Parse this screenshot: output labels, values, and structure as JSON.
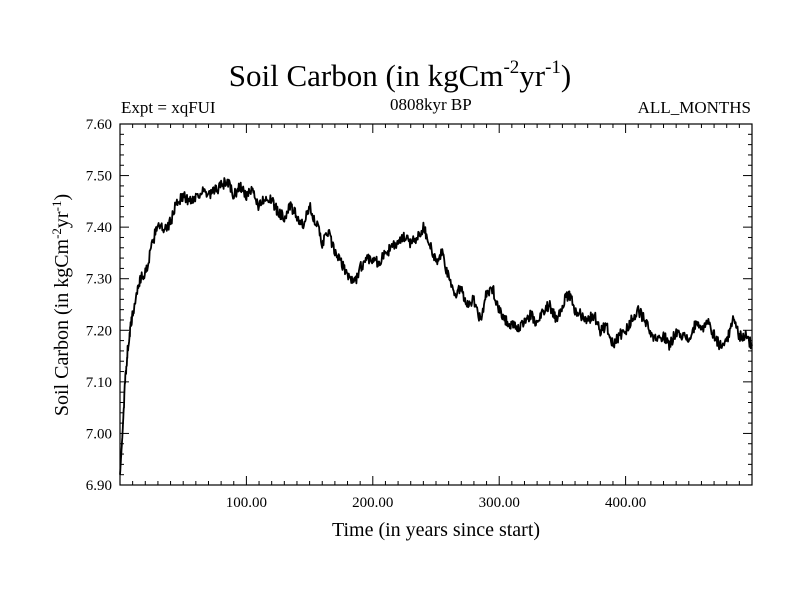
{
  "chart_data": {
    "type": "line",
    "title": {
      "main": "Soil Carbon (in kgCm",
      "exp1": "-2",
      "mid": "yr",
      "exp2": "-1",
      "end": ")"
    },
    "left_label": "Expt = xqFUI",
    "center_label": "0808kyr BP",
    "right_label": "ALL_MONTHS",
    "xlabel": "Time (in years since start)",
    "ylabel": {
      "main": "Soil Carbon (in kgCm",
      "exp1": "-2",
      "mid": "yr",
      "exp2": "-1",
      "end": ")"
    },
    "xlim": [
      0,
      500
    ],
    "ylim": [
      6.9,
      7.6
    ],
    "xticks": [
      {
        "value": 100,
        "label": "100.00"
      },
      {
        "value": 200,
        "label": "200.00"
      },
      {
        "value": 300,
        "label": "300.00"
      },
      {
        "value": 400,
        "label": "400.00"
      }
    ],
    "yticks": [
      {
        "value": 6.9,
        "label": "6.90"
      },
      {
        "value": 7.0,
        "label": "7.00"
      },
      {
        "value": 7.1,
        "label": "7.10"
      },
      {
        "value": 7.2,
        "label": "7.20"
      },
      {
        "value": 7.3,
        "label": "7.30"
      },
      {
        "value": 7.4,
        "label": "7.40"
      },
      {
        "value": 7.5,
        "label": "7.50"
      },
      {
        "value": 7.6,
        "label": "7.60"
      }
    ],
    "series": [
      {
        "name": "Soil Carbon",
        "color": "#000000",
        "x": [
          0,
          2,
          4,
          6,
          8,
          10,
          13,
          16,
          20,
          25,
          30,
          35,
          40,
          45,
          50,
          55,
          60,
          65,
          70,
          75,
          80,
          85,
          90,
          95,
          100,
          105,
          110,
          115,
          120,
          125,
          130,
          135,
          140,
          145,
          150,
          155,
          160,
          165,
          170,
          175,
          180,
          185,
          190,
          195,
          200,
          205,
          210,
          215,
          220,
          225,
          230,
          235,
          240,
          245,
          250,
          255,
          260,
          265,
          270,
          275,
          280,
          285,
          290,
          295,
          300,
          305,
          310,
          315,
          320,
          325,
          330,
          335,
          340,
          345,
          350,
          355,
          360,
          365,
          370,
          375,
          380,
          385,
          390,
          395,
          400,
          405,
          410,
          415,
          420,
          425,
          430,
          435,
          440,
          445,
          450,
          455,
          460,
          465,
          470,
          475,
          480,
          485,
          490,
          495,
          500
        ],
        "y": [
          6.92,
          7.0,
          7.1,
          7.16,
          7.2,
          7.23,
          7.27,
          7.3,
          7.31,
          7.36,
          7.41,
          7.39,
          7.41,
          7.45,
          7.46,
          7.45,
          7.46,
          7.47,
          7.46,
          7.47,
          7.48,
          7.49,
          7.46,
          7.48,
          7.46,
          7.47,
          7.44,
          7.46,
          7.45,
          7.43,
          7.42,
          7.44,
          7.42,
          7.4,
          7.44,
          7.41,
          7.37,
          7.39,
          7.35,
          7.33,
          7.31,
          7.29,
          7.32,
          7.34,
          7.34,
          7.33,
          7.35,
          7.36,
          7.37,
          7.38,
          7.37,
          7.38,
          7.4,
          7.37,
          7.33,
          7.35,
          7.3,
          7.27,
          7.28,
          7.25,
          7.26,
          7.22,
          7.27,
          7.28,
          7.24,
          7.22,
          7.21,
          7.2,
          7.22,
          7.23,
          7.21,
          7.24,
          7.25,
          7.22,
          7.25,
          7.27,
          7.24,
          7.23,
          7.22,
          7.23,
          7.2,
          7.21,
          7.17,
          7.19,
          7.2,
          7.22,
          7.24,
          7.22,
          7.19,
          7.18,
          7.19,
          7.17,
          7.2,
          7.19,
          7.18,
          7.21,
          7.2,
          7.22,
          7.19,
          7.17,
          7.18,
          7.22,
          7.19,
          7.19,
          7.17
        ]
      }
    ]
  }
}
